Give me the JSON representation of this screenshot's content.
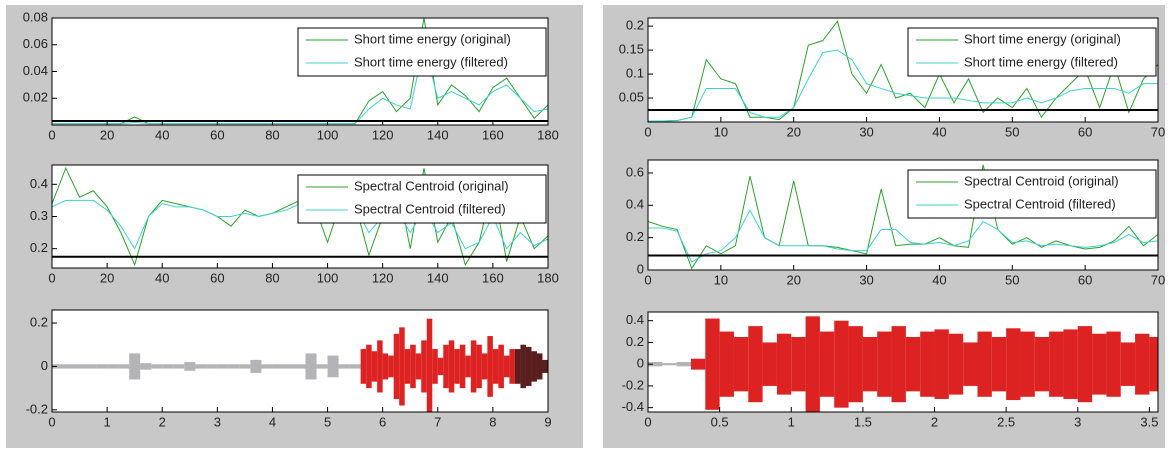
{
  "chart_data": [
    {
      "type": "line",
      "x": [
        0,
        5,
        10,
        15,
        20,
        25,
        30,
        35,
        40,
        45,
        50,
        55,
        60,
        65,
        70,
        75,
        80,
        85,
        90,
        95,
        100,
        105,
        110,
        115,
        120,
        125,
        130,
        135,
        140,
        145,
        150,
        155,
        160,
        165,
        170,
        175,
        180
      ],
      "series": [
        {
          "name": "Short time energy (original)",
          "color": "#2ca02c",
          "values": [
            0.001,
            0.001,
            0.001,
            0.001,
            0.001,
            0.001,
            0.006,
            0.001,
            0.001,
            0.001,
            0.001,
            0.001,
            0.001,
            0.001,
            0.001,
            0.001,
            0.001,
            0.001,
            0.001,
            0.001,
            0.001,
            0.001,
            0.001,
            0.018,
            0.025,
            0.01,
            0.02,
            0.08,
            0.015,
            0.03,
            0.022,
            0.01,
            0.028,
            0.035,
            0.02,
            0.005,
            0.015
          ]
        },
        {
          "name": "Short time energy (filtered)",
          "color": "#40d0d0",
          "values": [
            0.001,
            0.001,
            0.001,
            0.001,
            0.001,
            0.001,
            0.002,
            0.001,
            0.001,
            0.001,
            0.001,
            0.001,
            0.001,
            0.001,
            0.001,
            0.001,
            0.001,
            0.001,
            0.001,
            0.001,
            0.001,
            0.001,
            0.001,
            0.012,
            0.02,
            0.015,
            0.012,
            0.06,
            0.02,
            0.025,
            0.02,
            0.015,
            0.025,
            0.03,
            0.02,
            0.01,
            0.012
          ]
        }
      ],
      "threshold": 0.003,
      "xlim": [
        0,
        180
      ],
      "ylim": [
        0,
        0.08
      ],
      "xticks": [
        0,
        20,
        40,
        60,
        80,
        100,
        120,
        140,
        160,
        180
      ],
      "yticks": [
        0.02,
        0.04,
        0.06,
        0.08
      ]
    },
    {
      "type": "line",
      "x": [
        0,
        5,
        10,
        15,
        20,
        25,
        30,
        35,
        40,
        45,
        50,
        55,
        60,
        65,
        70,
        75,
        80,
        85,
        90,
        95,
        100,
        105,
        110,
        115,
        120,
        125,
        130,
        135,
        140,
        145,
        150,
        155,
        160,
        165,
        170,
        175,
        180
      ],
      "series": [
        {
          "name": "Spectral Centroid (original)",
          "color": "#2ca02c",
          "values": [
            0.34,
            0.45,
            0.36,
            0.38,
            0.33,
            0.25,
            0.15,
            0.3,
            0.35,
            0.34,
            0.33,
            0.32,
            0.3,
            0.27,
            0.32,
            0.3,
            0.31,
            0.33,
            0.35,
            0.34,
            0.22,
            0.35,
            0.34,
            0.18,
            0.3,
            0.42,
            0.2,
            0.45,
            0.22,
            0.3,
            0.15,
            0.22,
            0.4,
            0.16,
            0.3,
            0.2,
            0.24
          ]
        },
        {
          "name": "Spectral Centroid (filtered)",
          "color": "#40d0d0",
          "values": [
            0.33,
            0.35,
            0.35,
            0.35,
            0.32,
            0.27,
            0.2,
            0.3,
            0.34,
            0.33,
            0.33,
            0.32,
            0.3,
            0.3,
            0.31,
            0.3,
            0.31,
            0.32,
            0.34,
            0.33,
            0.28,
            0.33,
            0.33,
            0.25,
            0.3,
            0.32,
            0.25,
            0.32,
            0.25,
            0.28,
            0.2,
            0.22,
            0.3,
            0.2,
            0.25,
            0.21,
            0.23
          ]
        }
      ],
      "threshold": 0.175,
      "xlim": [
        0,
        180
      ],
      "ylim": [
        0.14,
        0.46
      ],
      "xticks": [
        0,
        20,
        40,
        60,
        80,
        100,
        120,
        140,
        160,
        180
      ],
      "yticks": [
        0.2,
        0.3,
        0.4
      ]
    },
    {
      "type": "waveform",
      "series": [
        {
          "color": "#b4b4b8",
          "x": [
            0,
            0.2,
            0.4,
            0.6,
            0.8,
            1,
            1.2,
            1.4,
            1.6,
            1.8,
            2,
            2.2,
            2.4,
            2.6,
            2.8,
            3,
            3.2,
            3.4,
            3.6,
            3.8,
            4,
            4.2,
            4.4,
            4.6,
            4.8,
            5,
            5.2,
            5.4
          ],
          "values": [
            0.01,
            0.01,
            0.01,
            0.01,
            0.01,
            0.01,
            0.01,
            0.06,
            0.015,
            0.01,
            0.01,
            0.01,
            0.02,
            0.01,
            0.01,
            0.01,
            0.01,
            0.01,
            0.03,
            0.01,
            0.01,
            0.01,
            0.01,
            0.06,
            0.01,
            0.05,
            0.01,
            0.01
          ]
        },
        {
          "color": "#dd2222",
          "x": [
            5.6,
            5.7,
            5.8,
            5.9,
            6,
            6.1,
            6.2,
            6.3,
            6.4,
            6.5,
            6.6,
            6.7,
            6.8,
            6.9,
            7,
            7.1,
            7.2,
            7.3,
            7.4,
            7.5,
            7.6,
            7.7,
            7.8,
            7.9,
            8,
            8.1,
            8.2,
            8.3
          ],
          "values": [
            0.08,
            0.1,
            0.07,
            0.12,
            0.06,
            0.05,
            0.15,
            0.18,
            0.08,
            0.1,
            0.06,
            0.12,
            0.22,
            0.08,
            0.04,
            0.1,
            0.12,
            0.08,
            0.1,
            0.05,
            0.12,
            0.1,
            0.06,
            0.14,
            0.08,
            0.1,
            0.05,
            0.08
          ]
        },
        {
          "color": "#5a1e1e",
          "x": [
            8.4,
            8.5,
            8.6,
            8.7,
            8.8,
            8.9
          ],
          "values": [
            0.08,
            0.1,
            0.09,
            0.07,
            0.06,
            0.03
          ]
        }
      ],
      "xlim": [
        0,
        9
      ],
      "ylim": [
        -0.21,
        0.26
      ],
      "xticks": [
        0,
        1,
        2,
        3,
        4,
        5,
        6,
        7,
        8,
        9
      ],
      "yticks": [
        -0.2,
        0,
        0.2
      ]
    },
    {
      "type": "line",
      "x": [
        0,
        2,
        4,
        6,
        8,
        10,
        12,
        14,
        16,
        18,
        20,
        22,
        24,
        26,
        28,
        30,
        32,
        34,
        36,
        38,
        40,
        42,
        44,
        46,
        48,
        50,
        52,
        54,
        56,
        58,
        60,
        62,
        64,
        66,
        68,
        70
      ],
      "series": [
        {
          "name": "Short time energy (original)",
          "color": "#2ca02c",
          "values": [
            0.002,
            0.002,
            0.003,
            0.01,
            0.13,
            0.09,
            0.08,
            0.01,
            0.01,
            0.005,
            0.03,
            0.16,
            0.17,
            0.21,
            0.1,
            0.06,
            0.12,
            0.05,
            0.06,
            0.03,
            0.1,
            0.04,
            0.09,
            0.02,
            0.05,
            0.03,
            0.07,
            0.01,
            0.05,
            0.08,
            0.11,
            0.03,
            0.12,
            0.02,
            0.09,
            0.12
          ]
        },
        {
          "name": "Short time energy (filtered)",
          "color": "#40d0d0",
          "values": [
            0.002,
            0.002,
            0.003,
            0.01,
            0.07,
            0.07,
            0.07,
            0.02,
            0.01,
            0.01,
            0.03,
            0.09,
            0.145,
            0.15,
            0.13,
            0.08,
            0.07,
            0.06,
            0.055,
            0.05,
            0.05,
            0.05,
            0.045,
            0.04,
            0.04,
            0.04,
            0.05,
            0.04,
            0.05,
            0.065,
            0.07,
            0.07,
            0.07,
            0.06,
            0.08,
            0.08
          ]
        }
      ],
      "threshold": 0.025,
      "xlim": [
        0,
        70
      ],
      "ylim": [
        0,
        0.217
      ],
      "xticks": [
        0,
        10,
        20,
        30,
        40,
        50,
        60,
        70
      ],
      "yticks": [
        0.05,
        0.1,
        0.15,
        0.2
      ]
    },
    {
      "type": "line",
      "x": [
        0,
        2,
        4,
        6,
        8,
        10,
        12,
        14,
        16,
        18,
        20,
        22,
        24,
        26,
        28,
        30,
        32,
        34,
        36,
        38,
        40,
        42,
        44,
        46,
        48,
        50,
        52,
        54,
        56,
        58,
        60,
        62,
        64,
        66,
        68,
        70
      ],
      "series": [
        {
          "name": "Spectral Centroid (original)",
          "color": "#2ca02c",
          "values": [
            0.3,
            0.27,
            0.25,
            0.01,
            0.15,
            0.1,
            0.15,
            0.58,
            0.2,
            0.15,
            0.55,
            0.15,
            0.15,
            0.14,
            0.12,
            0.1,
            0.5,
            0.15,
            0.16,
            0.16,
            0.2,
            0.15,
            0.14,
            0.65,
            0.25,
            0.16,
            0.2,
            0.14,
            0.18,
            0.15,
            0.13,
            0.14,
            0.18,
            0.27,
            0.15,
            0.22
          ]
        },
        {
          "name": "Spectral Centroid (filtered)",
          "color": "#40d0d0",
          "values": [
            0.26,
            0.26,
            0.24,
            0.05,
            0.1,
            0.12,
            0.2,
            0.37,
            0.2,
            0.15,
            0.15,
            0.15,
            0.15,
            0.13,
            0.12,
            0.12,
            0.25,
            0.25,
            0.17,
            0.16,
            0.17,
            0.15,
            0.18,
            0.3,
            0.25,
            0.17,
            0.18,
            0.15,
            0.16,
            0.15,
            0.14,
            0.15,
            0.17,
            0.22,
            0.17,
            0.18
          ]
        }
      ],
      "threshold": 0.09,
      "xlim": [
        0,
        70
      ],
      "ylim": [
        0,
        0.68
      ],
      "xticks": [
        0,
        10,
        20,
        30,
        40,
        50,
        60,
        70
      ],
      "yticks": [
        0,
        0.2,
        0.4,
        0.6
      ]
    },
    {
      "type": "waveform",
      "series": [
        {
          "color": "#b4b4b8",
          "x": [
            0,
            0.1,
            0.2
          ],
          "values": [
            0.02,
            0.01,
            0.02
          ]
        },
        {
          "color": "#dd2222",
          "x": [
            0.3,
            0.4,
            0.5,
            0.6,
            0.7,
            0.8,
            0.9,
            1,
            1.1,
            1.2,
            1.3,
            1.4,
            1.5,
            1.6,
            1.7,
            1.8,
            1.9,
            2,
            2.1,
            2.2,
            2.3,
            2.4,
            2.5,
            2.6,
            2.7,
            2.8,
            2.9,
            3,
            3.1,
            3.2,
            3.3,
            3.4,
            3.5
          ],
          "values": [
            0.05,
            0.42,
            0.3,
            0.25,
            0.35,
            0.2,
            0.28,
            0.25,
            0.44,
            0.3,
            0.4,
            0.35,
            0.25,
            0.3,
            0.35,
            0.25,
            0.3,
            0.32,
            0.28,
            0.2,
            0.3,
            0.25,
            0.33,
            0.3,
            0.25,
            0.3,
            0.32,
            0.35,
            0.28,
            0.3,
            0.2,
            0.28,
            0.25
          ]
        }
      ],
      "xlim": [
        0,
        3.56
      ],
      "ylim": [
        -0.44,
        0.48
      ],
      "xticks": [
        0,
        0.5,
        1,
        1.5,
        2,
        2.5,
        3,
        3.5
      ],
      "yticks": [
        -0.4,
        -0.2,
        0,
        0.2,
        0.4
      ]
    }
  ]
}
